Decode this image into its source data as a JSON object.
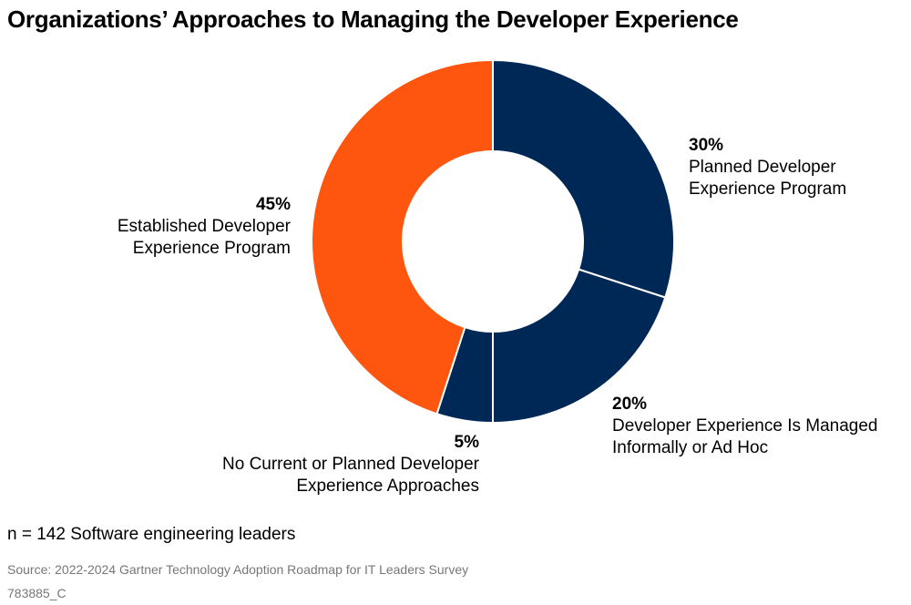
{
  "chart_data": {
    "type": "pie",
    "title": "Organizations’ Approaches to Managing the Developer Experience",
    "donut": true,
    "slices": [
      {
        "label": "Planned Developer Experience Program",
        "value": 30,
        "pct_label": "30%",
        "color": "#002856"
      },
      {
        "label": "Developer Experience Is Managed Informally or Ad Hoc",
        "value": 20,
        "pct_label": "20%",
        "color": "#002856"
      },
      {
        "label": "No Current or Planned Developer Experience Approaches",
        "value": 5,
        "pct_label": "5%",
        "color": "#002856"
      },
      {
        "label": "Established Developer Experience Program",
        "value": 45,
        "pct_label": "45%",
        "color": "#FF560F"
      }
    ],
    "labels": [
      {
        "pct": "30%",
        "l1": "Planned Developer",
        "l2": "Experience Program"
      },
      {
        "pct": "20%",
        "l1": "Developer Experience Is Managed",
        "l2": "Informally or Ad Hoc"
      },
      {
        "pct": "5%",
        "l1": "No Current or Planned Developer",
        "l2": "Experience Approaches"
      },
      {
        "pct": "45%",
        "l1": "Established Developer",
        "l2": "Experience Program"
      }
    ]
  },
  "note": "n = 142 Software engineering leaders",
  "source": "Source: 2022-2024 Gartner Technology Adoption Roadmap for IT Leaders Survey",
  "figure_id": "783885_C"
}
